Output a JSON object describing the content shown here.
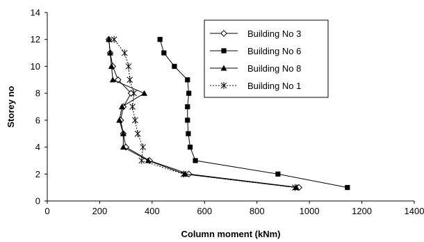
{
  "chart_data": {
    "type": "line",
    "xlabel": "Column moment  (kNm)",
    "ylabel": "Storey no",
    "xlim": [
      0,
      1400
    ],
    "ylim": [
      0,
      14
    ],
    "x_ticks": [
      0,
      200,
      400,
      600,
      800,
      1000,
      1200,
      1400
    ],
    "y_ticks": [
      0,
      2,
      4,
      6,
      8,
      10,
      12,
      14
    ],
    "grid": false,
    "legend": "top-right",
    "series": [
      {
        "name": "Building No 3",
        "marker": "open-diamond",
        "line": "solid",
        "points": [
          [
            960,
            1
          ],
          [
            540,
            2
          ],
          [
            390,
            3
          ],
          [
            300,
            4
          ],
          [
            290,
            5
          ],
          [
            280,
            6
          ],
          [
            290,
            7
          ],
          [
            320,
            8
          ],
          [
            270,
            9
          ],
          [
            250,
            10
          ],
          [
            240,
            11
          ],
          [
            235,
            12
          ]
        ]
      },
      {
        "name": "Building No 6",
        "marker": "filled-square",
        "line": "solid",
        "points": [
          [
            1145,
            1
          ],
          [
            880,
            2
          ],
          [
            565,
            3
          ],
          [
            545,
            4
          ],
          [
            538,
            5
          ],
          [
            535,
            6
          ],
          [
            535,
            7
          ],
          [
            540,
            8
          ],
          [
            535,
            9
          ],
          [
            485,
            10
          ],
          [
            445,
            11
          ],
          [
            430,
            12
          ]
        ]
      },
      {
        "name": "Building No 8",
        "marker": "filled-triangle",
        "line": "solid",
        "points": [
          [
            950,
            1
          ],
          [
            525,
            2
          ],
          [
            385,
            3
          ],
          [
            290,
            4
          ],
          [
            290,
            5
          ],
          [
            275,
            6
          ],
          [
            285,
            7
          ],
          [
            370,
            8
          ],
          [
            250,
            9
          ],
          [
            245,
            10
          ],
          [
            240,
            11
          ],
          [
            235,
            12
          ]
        ]
      },
      {
        "name": "Building No 1",
        "marker": "asterisk",
        "line": "dotted",
        "points": [
          [
            945,
            1
          ],
          [
            520,
            2
          ],
          [
            360,
            3
          ],
          [
            365,
            4
          ],
          [
            345,
            5
          ],
          [
            335,
            6
          ],
          [
            325,
            7
          ],
          [
            330,
            8
          ],
          [
            315,
            9
          ],
          [
            310,
            10
          ],
          [
            295,
            11
          ],
          [
            255,
            12
          ]
        ]
      }
    ]
  }
}
